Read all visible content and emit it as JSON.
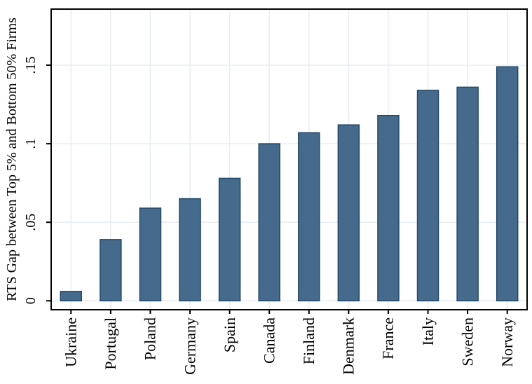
{
  "chart_data": {
    "type": "bar",
    "title": "",
    "xlabel": "",
    "ylabel": "RTS Gap between Top 5% and Bottom 50% Firms",
    "categories": [
      "Ukraine",
      "Portugal",
      "Poland",
      "Germany",
      "Spain",
      "Canada",
      "Finland",
      "Denmark",
      "France",
      "Italy",
      "Sweden",
      "Norway"
    ],
    "values": [
      0.006,
      0.039,
      0.059,
      0.065,
      0.078,
      0.1,
      0.107,
      0.112,
      0.118,
      0.134,
      0.136,
      0.149
    ],
    "ylim": [
      0,
      0.186
    ],
    "yticks": [
      0,
      0.05,
      0.1,
      0.15
    ],
    "ytick_labels": [
      "0",
      ".05",
      ".1",
      ".15"
    ],
    "tick_label_rotation_deg": 90,
    "grid": true,
    "legend_position": "none",
    "colors": {
      "bar_fill": "#466a8c",
      "bar_border": "#234769",
      "gridline": "#e8eff2",
      "axis": "#000000",
      "background": "#ffffff"
    }
  }
}
